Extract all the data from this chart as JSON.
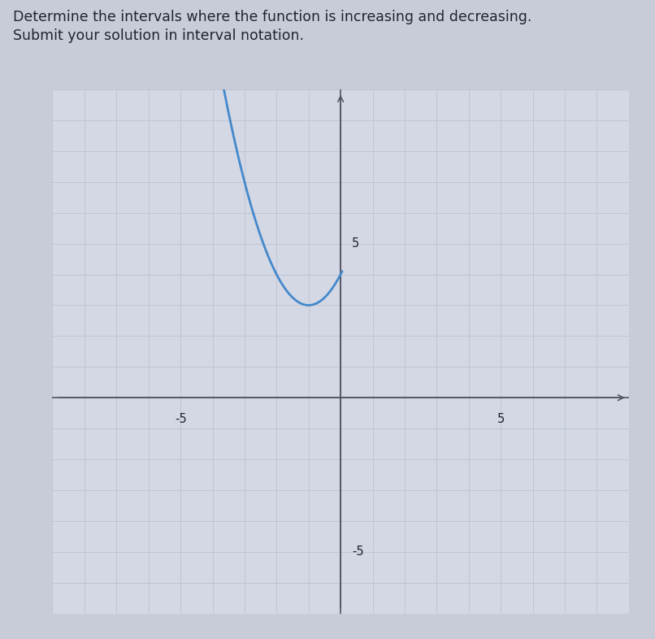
{
  "title_line1": "Determine the intervals where the function is increasing and decreasing.",
  "title_line2": "Submit your solution in interval notation.",
  "xlim": [
    -9,
    9
  ],
  "ylim": [
    -7,
    10
  ],
  "x_tick_neg5": -5,
  "x_tick_pos5": 5,
  "y_tick_pos5": 5,
  "y_tick_neg5": -5,
  "curve_color": "#4488cc",
  "curve_linewidth": 2.0,
  "vertex_x": -1,
  "vertex_y": 3,
  "coeff": 1.0,
  "x_start": -5.2,
  "x_end": 0.05,
  "background_color": "#d4d8e4",
  "fig_background": "#c8ccd8",
  "grid_color_major": "#b8bdd0",
  "grid_color_minor": "#c0c5d5",
  "axis_color": "#555566",
  "axis_lw": 1.2,
  "text_color": "#222233",
  "font_size_title": 12.5,
  "font_size_ticks": 10.5
}
